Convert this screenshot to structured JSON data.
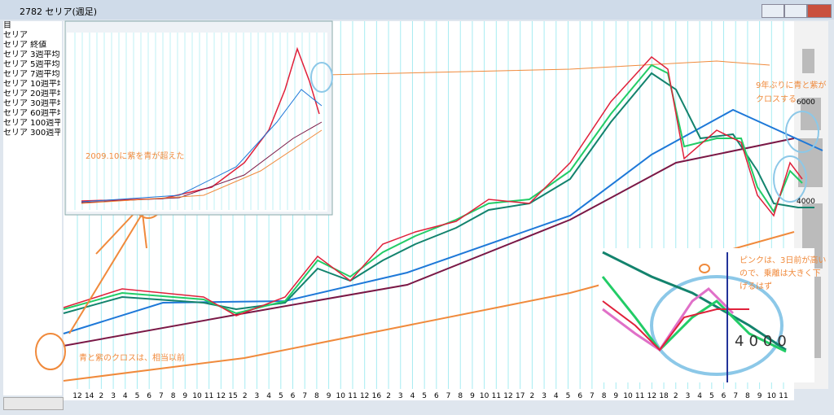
{
  "window": {
    "title": "2782 セリア(週足)"
  },
  "legend": {
    "items": [
      "目",
      "セリア",
      "セリア 終値",
      "セリア 3週平均",
      "セリア 5週平均",
      "セリア 7週平均",
      "セリア 10週平均",
      "セリア 20週平均",
      "セリア 30週平均",
      "セリア 60週平均",
      "セリア 100週平均",
      "セリア 300週平均"
    ]
  },
  "x_axis": {
    "labels": [
      "12",
      "14",
      "2",
      "3",
      "4",
      "5",
      "6",
      "7",
      "8",
      "9",
      "10",
      "11",
      "12",
      "15",
      "2",
      "3",
      "4",
      "5",
      "6",
      "7",
      "8",
      "9",
      "10",
      "11",
      "12",
      "16",
      "2",
      "3",
      "4",
      "5",
      "6",
      "7",
      "8",
      "9",
      "10",
      "11",
      "12",
      "17",
      "2",
      "3",
      "4",
      "5",
      "6",
      "7",
      "8",
      "9",
      "10",
      "11",
      "12",
      "18",
      "2",
      "3",
      "4",
      "5",
      "6",
      "7",
      "8",
      "9",
      "10",
      "11"
    ]
  },
  "annotations": {
    "inset_note": "2009.10に紫を青が超えた",
    "old_cross": "青と紫のクロスは、相当以前",
    "cross_line1": "9年ぶりに青と紫が",
    "cross_line2": "クロスする",
    "price_6000": "6000",
    "price_4000": "4000",
    "pink_line1": "ピンクは、3日前が高い",
    "pink_line2": "ので、乗離は大きく下",
    "pink_line3": "げるはず",
    "zoom_4000": "4000"
  }
}
